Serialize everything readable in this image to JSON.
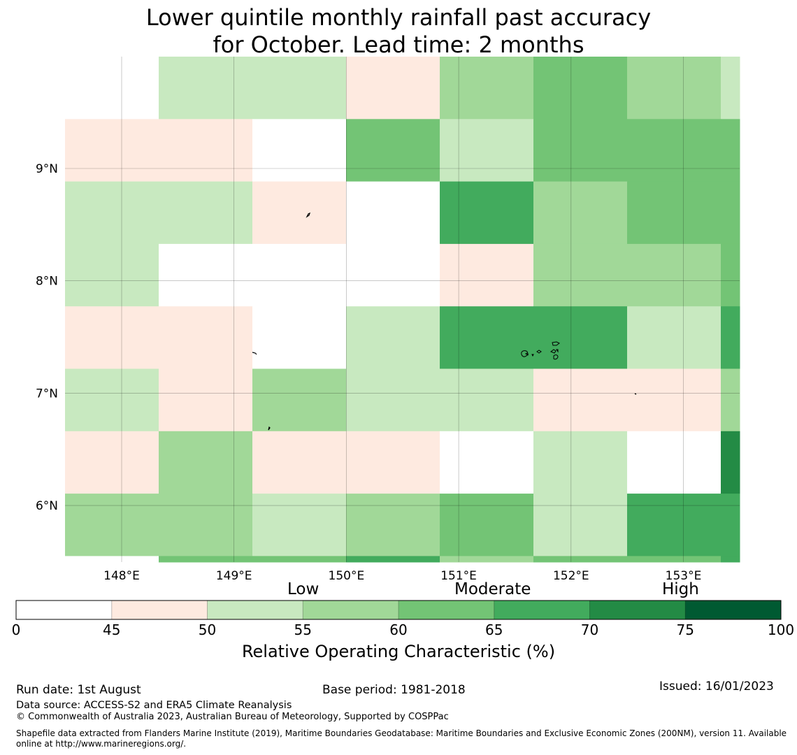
{
  "title_line1": "Lower quintile monthly rainfall past accuracy",
  "title_line2": "for October. Lead time: 2 months",
  "map": {
    "lon_ticks": [
      "148°E",
      "149°E",
      "150°E",
      "151°E",
      "152°E",
      "153°E"
    ],
    "lon_tick_values": [
      148,
      149,
      150,
      151,
      152,
      153
    ],
    "lat_ticks": [
      "9°N",
      "8°N",
      "7°N",
      "6°N"
    ],
    "lat_tick_values": [
      9,
      8,
      7,
      6
    ],
    "lon_range": [
      147.5,
      153.5
    ],
    "lat_range": [
      5.5,
      10.0
    ],
    "cell_columns": 8,
    "cell_rows": 9,
    "cell_classes_north_to_south": [
      [
        0,
        2,
        2,
        1,
        3,
        4,
        3,
        2
      ],
      [
        1,
        1,
        0,
        4,
        2,
        4,
        4,
        4
      ],
      [
        2,
        2,
        1,
        0,
        5,
        3,
        4,
        4
      ],
      [
        2,
        0,
        0,
        0,
        1,
        3,
        3,
        4
      ],
      [
        1,
        1,
        0,
        2,
        5,
        5,
        2,
        5
      ],
      [
        2,
        1,
        3,
        2,
        2,
        1,
        1,
        3
      ],
      [
        1,
        3,
        1,
        1,
        0,
        2,
        0,
        6
      ],
      [
        3,
        3,
        2,
        3,
        4,
        2,
        5,
        5
      ],
      [
        0,
        4,
        4,
        5,
        3,
        4,
        4,
        5
      ]
    ],
    "bottom_row_partial": true,
    "coastline_color": "#000000"
  },
  "colorbar": {
    "category_words": [
      "Low",
      "Moderate",
      "High"
    ],
    "tick_labels": [
      "0",
      "45",
      "50",
      "55",
      "60",
      "65",
      "70",
      "75",
      "100"
    ],
    "class_colors": [
      "#ffffff",
      "#feeae0",
      "#c8e9c0",
      "#a1d898",
      "#73c475",
      "#42ab5d",
      "#238b45",
      "#005a32"
    ],
    "label": "Relative Operating Characteristic (%)"
  },
  "footer": {
    "run_date": "Run date: 1st August",
    "base_period": "Base period: 1981-2018",
    "issued": "Issued: 16/01/2023",
    "data_source": "Data source: ACCESS-S2 and ERA5 Climate Reanalysis",
    "copyright": "© Commonwealth of Australia 2023, Australian Bureau of Meteorology, Supported by COSPPac",
    "shapefile": "Shapefile data extracted from Flanders Marine Institute (2019), Maritime Boundaries Geodatabase: Maritime Boundaries and Exclusive Economic Zones (200NM), version 11. Available online at http://www.marineregions.org/."
  }
}
